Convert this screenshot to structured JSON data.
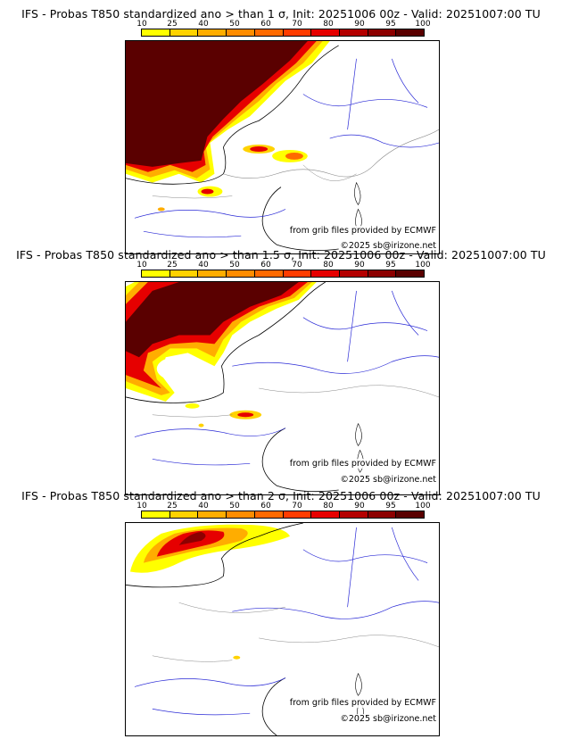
{
  "legend_colors": [
    "#ffff00",
    "#ffd200",
    "#ffad00",
    "#ff8c00",
    "#ff6a00",
    "#ff3c00",
    "#e60000",
    "#b40000",
    "#8c0000",
    "#5a0000"
  ],
  "panels": [
    {
      "title": "IFS - Probas T850  standardized ano > than 1 σ, Init: 20251006 00z - Valid: 20251007:00 TU",
      "legend_labels": [
        "10",
        "25",
        "40",
        "50",
        "60",
        "70",
        "80",
        "90",
        "95",
        "100"
      ],
      "credit_grib": "from grib files provided by ECMWF",
      "credit_copyright": "©2025 sb@irizone.net"
    },
    {
      "title": "IFS - Probas T850  standardized ano > than 1.5 σ, Init: 20251006 00z - Valid: 20251007:00 TU",
      "legend_labels": [
        "10",
        "25",
        "40",
        "50",
        "60",
        "70",
        "80",
        "90",
        "95",
        "100"
      ],
      "credit_grib": "from grib files provided by ECMWF",
      "credit_copyright": "©2025 sb@irizone.net"
    },
    {
      "title": "IFS - Probas T850  standardized ano > than 2 σ, Init: 20251006 00z - Valid: 20251007:00 TU",
      "legend_labels": [
        "10",
        "25",
        "40",
        "50",
        "60",
        "70",
        "80",
        "90",
        "95",
        "100"
      ],
      "credit_grib": "from grib files provided by ECMWF",
      "credit_copyright": "©2025 sb@irizone.net"
    }
  ]
}
